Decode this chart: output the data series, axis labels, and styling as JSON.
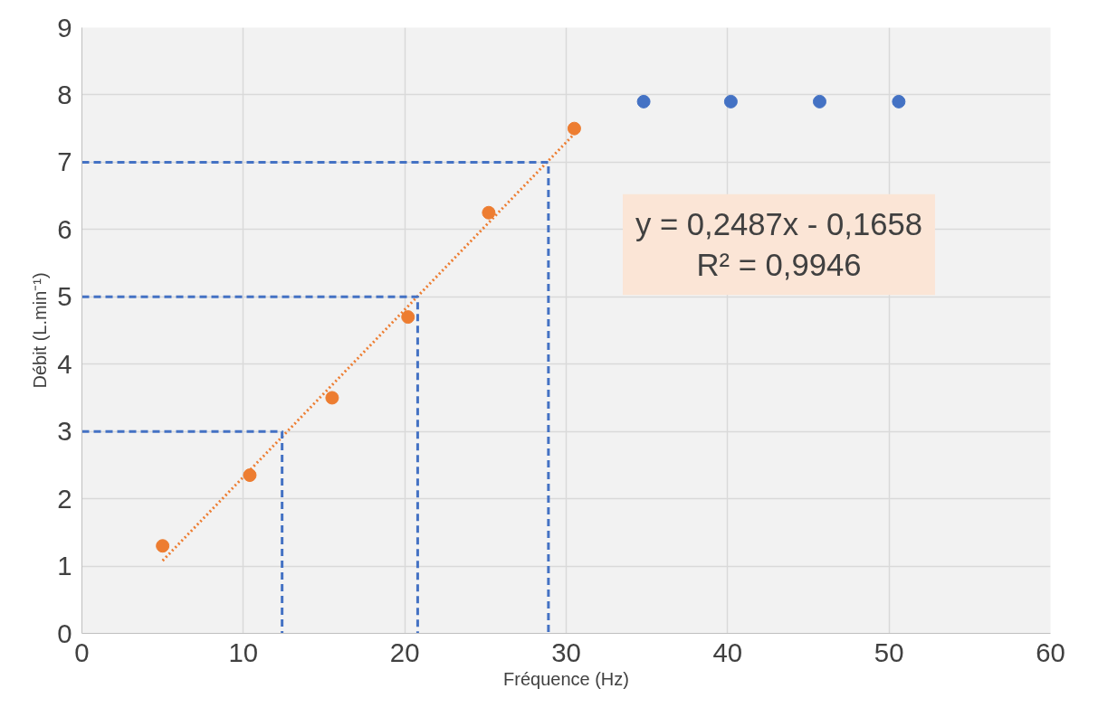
{
  "chart_data": {
    "type": "scatter",
    "xlabel": "Fréquence (Hz)",
    "ylabel": "Débit (L.min⁻¹)",
    "xlim": [
      0,
      60
    ],
    "ylim": [
      0,
      9
    ],
    "xticks": [
      0,
      10,
      20,
      30,
      40,
      50,
      60
    ],
    "yticks": [
      0,
      1,
      2,
      3,
      4,
      5,
      6,
      7,
      8,
      9
    ],
    "grid": true,
    "series": [
      {
        "marker": "circle",
        "color": "#4472c4",
        "x": [
          34.8,
          40.2,
          45.7,
          50.6
        ],
        "values": [
          7.9,
          7.9,
          7.9,
          7.9
        ]
      },
      {
        "marker": "circle",
        "color": "#ed7d31",
        "x": [
          5.0,
          10.4,
          15.5,
          20.2,
          25.2,
          30.5
        ],
        "values": [
          1.3,
          2.35,
          3.5,
          4.7,
          6.25,
          7.5
        ]
      },
      {
        "type": "line",
        "line_style": "dotted",
        "color": "#ed7d31",
        "x": [
          5.0,
          30.5
        ],
        "values": [
          1.08,
          7.42
        ]
      },
      {
        "type": "line",
        "line_style": "dashed",
        "color": "#4472c4",
        "x": [
          0,
          28.9,
          28.9
        ],
        "values": [
          7,
          7,
          0
        ]
      },
      {
        "type": "line",
        "line_style": "dashed",
        "color": "#4472c4",
        "x": [
          0,
          20.8,
          20.8
        ],
        "values": [
          5,
          5,
          0
        ]
      },
      {
        "type": "line",
        "line_style": "dashed",
        "color": "#4472c4",
        "x": [
          0,
          12.4,
          12.4
        ],
        "values": [
          3,
          3,
          0
        ]
      }
    ],
    "annotations": [
      "y = 0,2487x - 0,1658\nR² = 0,9946"
    ]
  }
}
